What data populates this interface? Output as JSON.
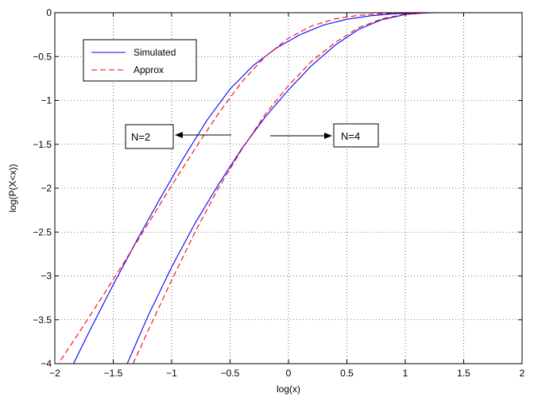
{
  "chart_data": {
    "type": "line",
    "xlabel": "log(x)",
    "ylabel": "log(P(X<x))",
    "xlim": [
      -2,
      2
    ],
    "ylim": [
      -4,
      0
    ],
    "xticks": [
      -2,
      -1.5,
      -1,
      -0.5,
      0,
      0.5,
      1,
      1.5,
      2
    ],
    "yticks": [
      -4,
      -3.5,
      -3,
      -2.5,
      -2,
      -1.5,
      -1,
      -0.5,
      0
    ],
    "xtick_labels": [
      "−2",
      "−1.5",
      "−1",
      "−0.5",
      "0",
      "0.5",
      "1",
      "1.5",
      "2"
    ],
    "ytick_labels": [
      "−4",
      "−3.5",
      "−3",
      "−2.5",
      "−2",
      "−1.5",
      "−1",
      "−0.5",
      "0"
    ],
    "grid": true,
    "legend": {
      "placement": "upper-left",
      "entries": [
        {
          "label": "Simulated",
          "color": "#0000ff",
          "style": "solid"
        },
        {
          "label": "Approx",
          "color": "#ff0000",
          "style": "dashed"
        }
      ]
    },
    "annotations": [
      {
        "text": "N=2",
        "series_group": "N=2"
      },
      {
        "text": "N=4",
        "series_group": "N=4"
      }
    ],
    "series": [
      {
        "group": "N=2",
        "kind": "simulated",
        "color": "#0000ff",
        "style": "solid",
        "x": [
          -1.84,
          -1.7,
          -1.5,
          -1.3,
          -1.1,
          -0.9,
          -0.7,
          -0.5,
          -0.3,
          -0.1,
          0.1,
          0.3,
          0.5,
          0.7,
          0.9,
          1.1,
          1.3,
          1.5,
          1.75
        ],
        "y": [
          -4.0,
          -3.62,
          -3.1,
          -2.6,
          -2.12,
          -1.66,
          -1.23,
          -0.87,
          -0.6,
          -0.4,
          -0.25,
          -0.14,
          -0.075,
          -0.035,
          -0.012,
          -0.003,
          0,
          0,
          0
        ]
      },
      {
        "group": "N=2",
        "kind": "approx",
        "color": "#ff0000",
        "style": "dashed",
        "x": [
          -1.95,
          -1.8,
          -1.6,
          -1.4,
          -1.2,
          -1.0,
          -0.8,
          -0.6,
          -0.4,
          -0.2,
          0.0,
          0.2,
          0.4,
          0.6,
          0.8,
          1.0,
          1.1,
          1.3,
          1.5,
          1.75
        ],
        "y": [
          -3.96,
          -3.66,
          -3.25,
          -2.83,
          -2.4,
          -1.97,
          -1.55,
          -1.15,
          -0.79,
          -0.5,
          -0.29,
          -0.15,
          -0.07,
          -0.03,
          -0.01,
          -0.002,
          0,
          0,
          0,
          0
        ]
      },
      {
        "group": "N=4",
        "kind": "simulated",
        "color": "#0000ff",
        "style": "solid",
        "x": [
          -1.38,
          -1.2,
          -1.0,
          -0.8,
          -0.6,
          -0.4,
          -0.2,
          0.0,
          0.2,
          0.4,
          0.6,
          0.8,
          1.0,
          1.2,
          1.4,
          1.6,
          1.75
        ],
        "y": [
          -4.0,
          -3.45,
          -2.9,
          -2.4,
          -1.96,
          -1.55,
          -1.19,
          -0.88,
          -0.6,
          -0.37,
          -0.19,
          -0.08,
          -0.02,
          0,
          0,
          0,
          0
        ]
      },
      {
        "group": "N=4",
        "kind": "approx",
        "color": "#ff0000",
        "style": "dashed",
        "x": [
          -1.33,
          -1.2,
          -1.0,
          -0.8,
          -0.6,
          -0.4,
          -0.2,
          0.0,
          0.2,
          0.4,
          0.6,
          0.8,
          1.0,
          1.2,
          1.4,
          1.6,
          1.75
        ],
        "y": [
          -4.0,
          -3.62,
          -3.05,
          -2.5,
          -2.0,
          -1.56,
          -1.16,
          -0.83,
          -0.55,
          -0.34,
          -0.17,
          -0.07,
          -0.015,
          0,
          0,
          0,
          0
        ]
      }
    ]
  }
}
